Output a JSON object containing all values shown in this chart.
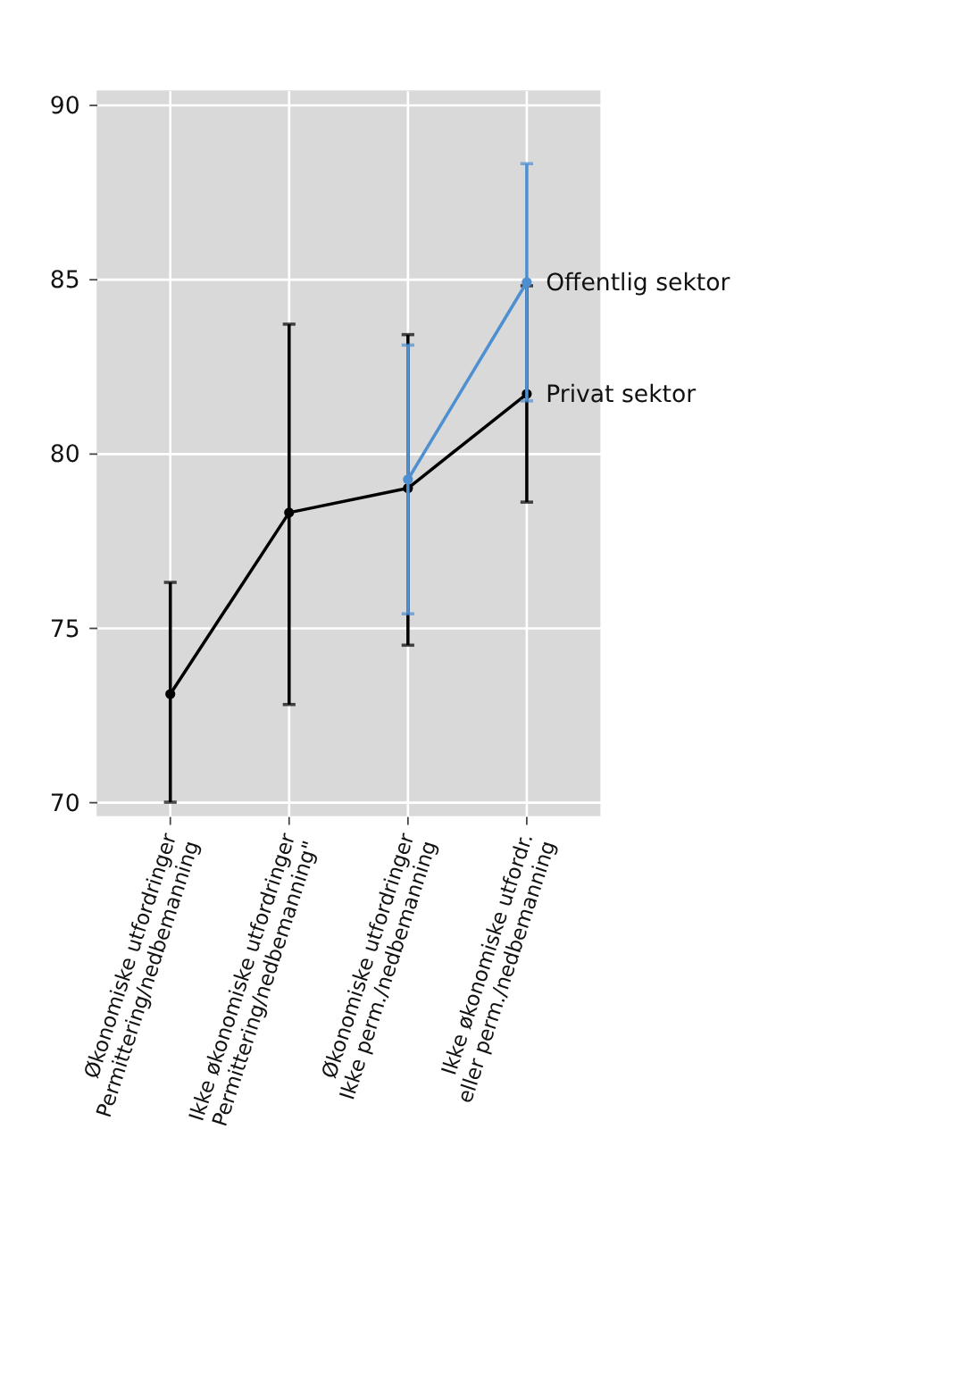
{
  "chart_data": {
    "type": "line",
    "categories": [
      "Økonomiske utfordringer\nPermittering/nedbemanning",
      "Ikke økonomiske utfordringer\nPermittering/nedbemanning\"",
      "Økonomiske utfordringer\nIkke perm./nedbemanning",
      "Ikke økonomiske utfordr.\neller perm./nedbemanning"
    ],
    "series": [
      {
        "name": "Privat sektor",
        "color": "#000000",
        "values": [
          73.1,
          78.3,
          79.0,
          81.7
        ],
        "errors": [
          [
            70.0,
            76.3
          ],
          [
            72.8,
            83.7
          ],
          [
            74.5,
            83.4
          ],
          [
            78.6,
            84.8
          ]
        ]
      },
      {
        "name": "Offentlig sektor",
        "color": "#4d8fd0",
        "values": [
          null,
          null,
          79.25,
          84.9
        ],
        "errors": [
          null,
          null,
          [
            75.4,
            83.1
          ],
          [
            81.5,
            88.3
          ]
        ]
      }
    ],
    "ylim": [
      69.6,
      90.4
    ],
    "yticks": [
      70,
      75,
      80,
      85,
      90
    ],
    "grid": true,
    "marker": "circle",
    "line_style": "solid"
  }
}
